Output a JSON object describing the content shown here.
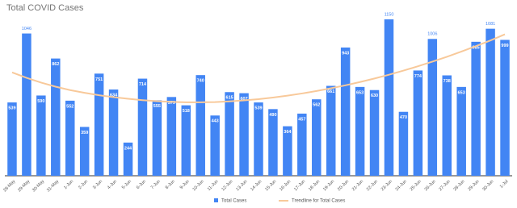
{
  "chart_data": {
    "type": "bar",
    "title": "Total COVID Cases",
    "categories": [
      "28-May",
      "29-May",
      "30-May",
      "31-May",
      "1-Jun",
      "2-Jun",
      "3-Jun",
      "4-Jun",
      "5-Jun",
      "6-Jun",
      "7-Jun",
      "8-Jun",
      "9-Jun",
      "10-Jun",
      "11-Jun",
      "12-Jun",
      "13-Jun",
      "14-Jun",
      "15-Jun",
      "16-Jun",
      "17-Jun",
      "18-Jun",
      "19-Jun",
      "20-Jun",
      "21-Jun",
      "22-Jun",
      "23-Jun",
      "24-Jun",
      "25-Jun",
      "26-Jun",
      "27-Jun",
      "28-Jun",
      "29-Jun",
      "30-Jun",
      "1-Jul"
    ],
    "series": [
      {
        "name": "Total Cases",
        "color": "#4285f4",
        "values": [
          539,
          1046,
          590,
          862,
          552,
          359,
          751,
          634,
          244,
          714,
          555,
          579,
          518,
          740,
          443,
          615,
          607,
          539,
          490,
          364,
          457,
          562,
          661,
          943,
          653,
          630,
          1150,
          470,
          774,
          1006,
          738,
          653,
          985,
          1081,
          999
        ]
      },
      {
        "name": "Trendline for Total Cases",
        "color": "#f8c99a",
        "values": [
          760,
          720,
          685,
          655,
          630,
          610,
          592,
          578,
          566,
          556,
          548,
          543,
          540,
          540,
          542,
          547,
          554,
          563,
          575,
          589,
          605,
          623,
          643,
          665,
          689,
          715,
          743,
          773,
          805,
          839,
          875,
          913,
          953,
          995,
          1040
        ]
      }
    ]
  }
}
